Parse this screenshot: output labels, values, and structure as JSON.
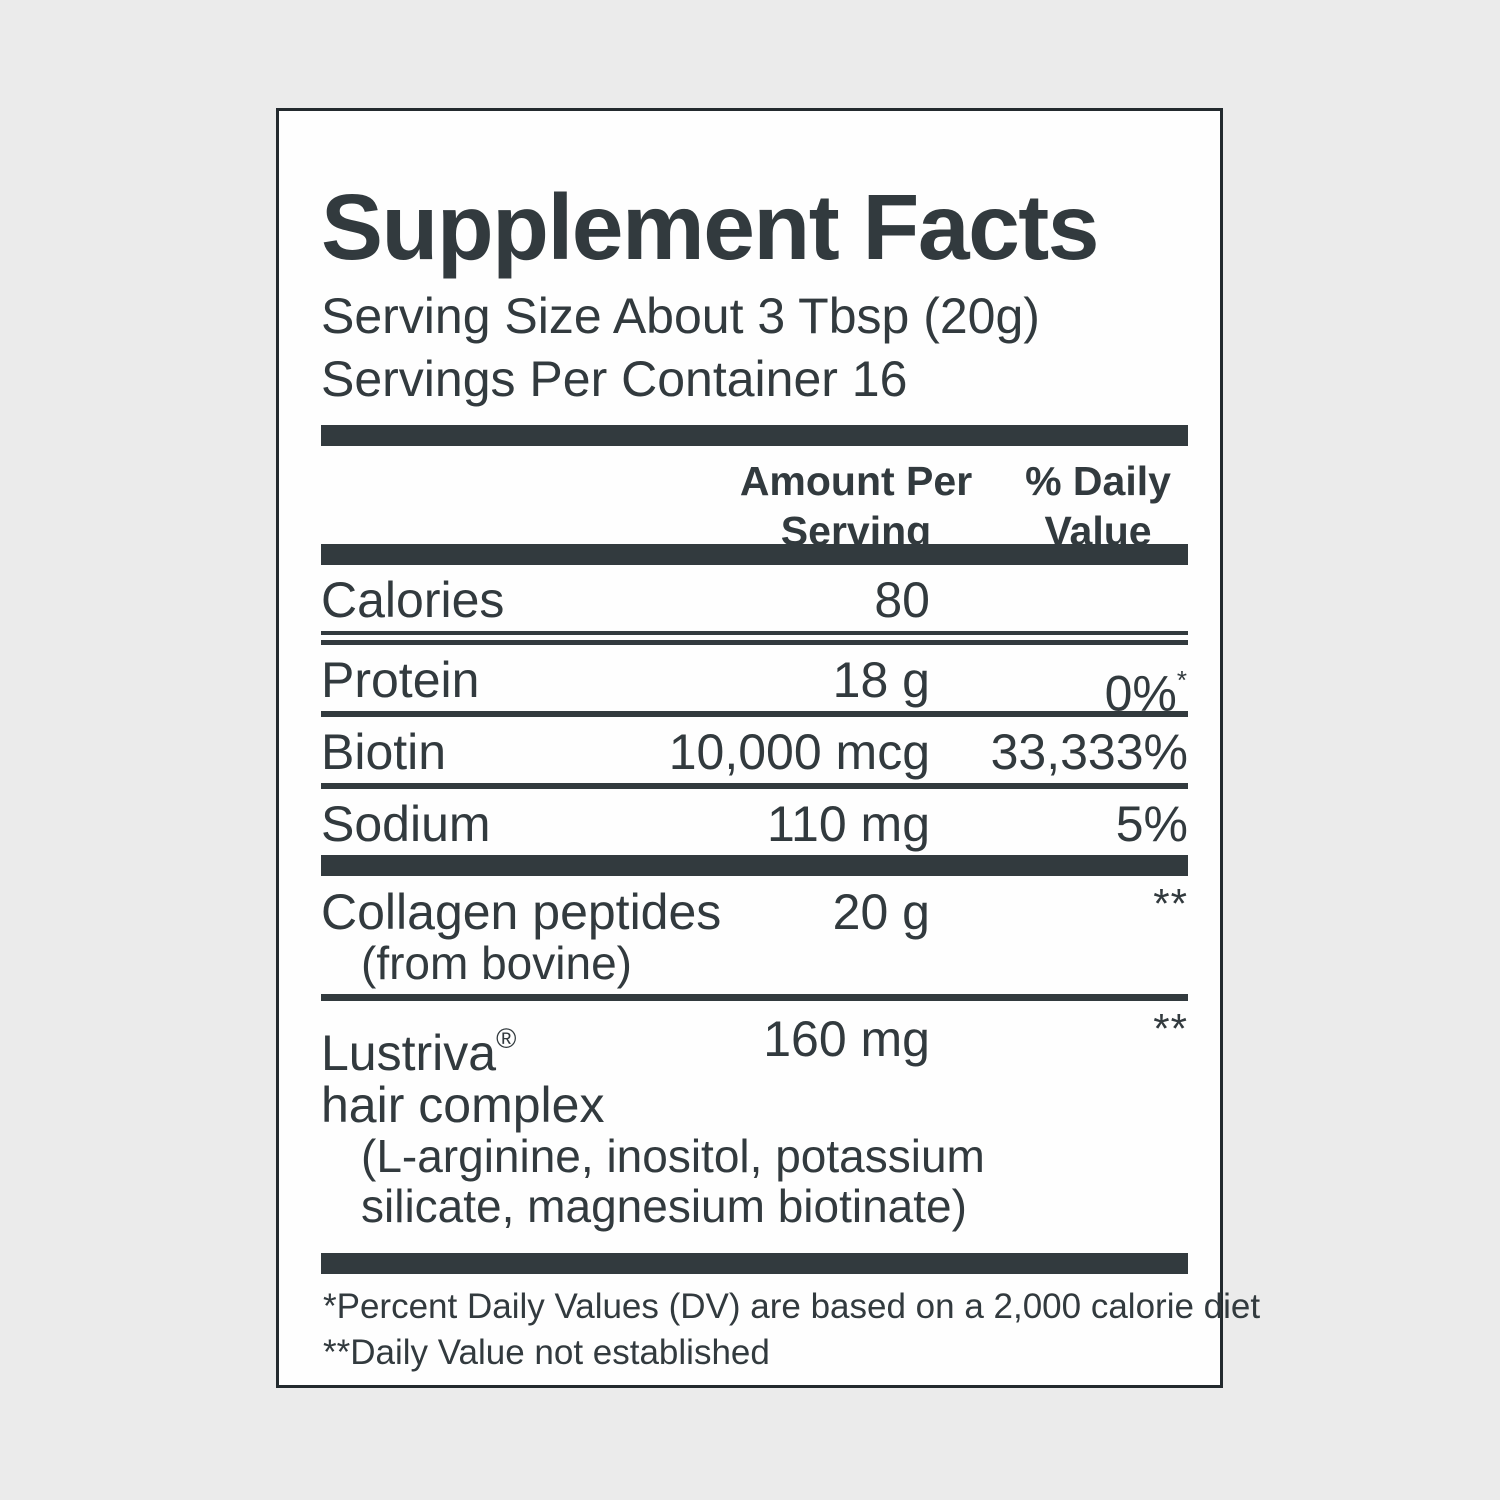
{
  "label": {
    "title": "Supplement Facts",
    "serving_size": "Serving Size About 3 Tbsp (20g)",
    "servings_per_container": "Servings Per Container 16",
    "columns": {
      "amount_line1": "Amount Per",
      "amount_line2": "Serving",
      "dv_line1": "% Daily",
      "dv_line2": "Value"
    },
    "rows": {
      "calories": {
        "name": "Calories",
        "amount": "80",
        "dv": ""
      },
      "protein": {
        "name": "Protein",
        "amount": "18 g",
        "dv": "0%",
        "dv_sup": "*"
      },
      "biotin": {
        "name": "Biotin",
        "amount": "10,000 mcg",
        "dv": "33,333%"
      },
      "sodium": {
        "name": "Sodium",
        "amount": "110 mg",
        "dv": "5%"
      },
      "collagen": {
        "name": "Collagen peptides",
        "amount": "20 g",
        "dv_sup": "**",
        "sub1": "(from bovine)"
      },
      "lustriva": {
        "name": "Lustriva",
        "name_sup": "®",
        "name_line2": "hair complex",
        "amount": "160 mg",
        "dv_sup": "**",
        "sub1": "(L-arginine, inositol, potassium",
        "sub2": "silicate, magnesium biotinate)"
      }
    },
    "footnotes": {
      "line1": "*Percent Daily Values (DV) are based on a 2,000 calorie diet",
      "line2": "**Daily Value not established"
    }
  },
  "colors": {
    "ink": "#323a3e",
    "panel_background": "#fefefe",
    "page_background": "#ebebeb",
    "border": "#232a2e"
  }
}
